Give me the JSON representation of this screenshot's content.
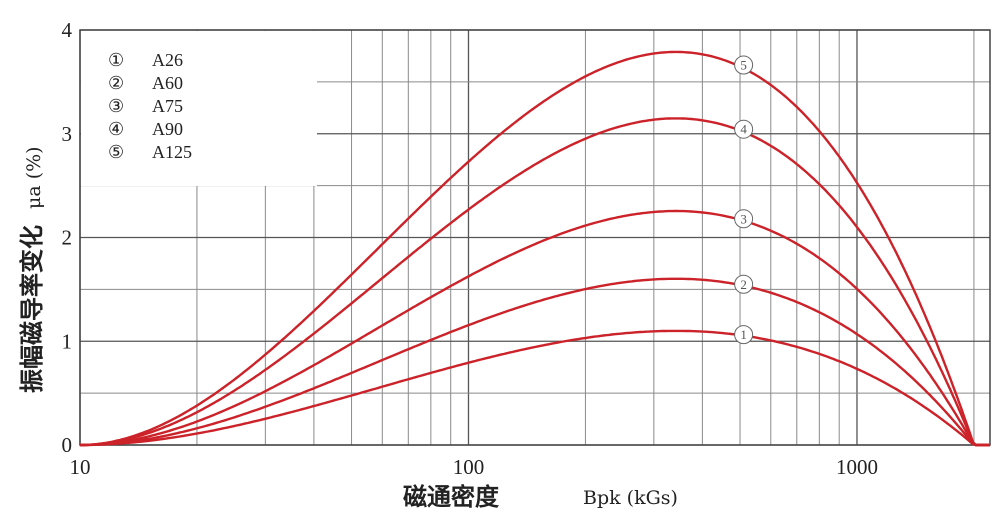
{
  "chart_data": {
    "type": "line",
    "x_scale": "log",
    "xlim": [
      10,
      2200
    ],
    "ylim": [
      0,
      4
    ],
    "x_ticks": [
      {
        "value": 10,
        "label": "10"
      },
      {
        "value": 100,
        "label": "100"
      },
      {
        "value": 1000,
        "label": "1000"
      }
    ],
    "y_ticks": [
      {
        "value": 0,
        "label": "0"
      },
      {
        "value": 1,
        "label": "1"
      },
      {
        "value": 2,
        "label": "2"
      },
      {
        "value": 3,
        "label": "3"
      },
      {
        "value": 4,
        "label": "4"
      }
    ],
    "xlabel": "磁通密度",
    "xlabel_unit": "Bpk (kGs)",
    "ylabel": "振幅磁导率变化",
    "ylabel_unit": "μa (%)",
    "legend_placement": "top-left",
    "grid": true,
    "line_color": "#cc2229",
    "series": [
      {
        "name": "A26",
        "marker": "①",
        "peak_x": 520,
        "peak_y": 1.05
      },
      {
        "name": "A60",
        "marker": "②",
        "peak_x": 560,
        "peak_y": 1.5
      },
      {
        "name": "A75",
        "marker": "③",
        "peak_x": 570,
        "peak_y": 2.1
      },
      {
        "name": "A90",
        "marker": "④",
        "peak_x": 590,
        "peak_y": 2.9
      },
      {
        "name": "A125",
        "marker": "⑤",
        "peak_x": 620,
        "peak_y": 3.43
      }
    ],
    "zero_crossing_x": 2000,
    "label_x": 490
  }
}
